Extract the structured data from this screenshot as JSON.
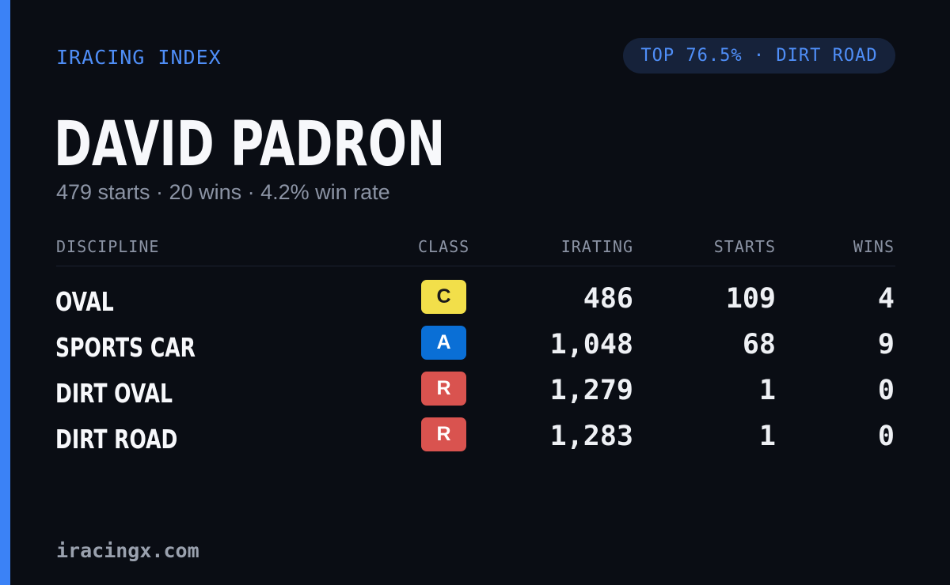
{
  "brand": "IRACING INDEX",
  "rank_pill": "TOP 76.5% · DIRT ROAD",
  "driver_name": "DAVID PADRON",
  "summary": "479 starts · 20 wins · 4.2% win rate",
  "colors": {
    "accent": "#3b82f6",
    "background": "#0a0d14",
    "class_c": "#f2df4a",
    "class_a": "#0a6fd6",
    "class_r": "#d9534f"
  },
  "table": {
    "headers": {
      "discipline": "DISCIPLINE",
      "class": "CLASS",
      "irating": "IRATING",
      "starts": "STARTS",
      "wins": "WINS"
    },
    "rows": [
      {
        "discipline": "OVAL",
        "class": "C",
        "class_color": "#f2df4a",
        "class_text_color": "#1a1a1a",
        "irating": "486",
        "starts": "109",
        "wins": "4"
      },
      {
        "discipline": "SPORTS CAR",
        "class": "A",
        "class_color": "#0a6fd6",
        "class_text_color": "#ffffff",
        "irating": "1,048",
        "starts": "68",
        "wins": "9"
      },
      {
        "discipline": "DIRT OVAL",
        "class": "R",
        "class_color": "#d9534f",
        "class_text_color": "#ffffff",
        "irating": "1,279",
        "starts": "1",
        "wins": "0"
      },
      {
        "discipline": "DIRT ROAD",
        "class": "R",
        "class_color": "#d9534f",
        "class_text_color": "#ffffff",
        "irating": "1,283",
        "starts": "1",
        "wins": "0"
      }
    ]
  },
  "footer": "iracingx.com"
}
